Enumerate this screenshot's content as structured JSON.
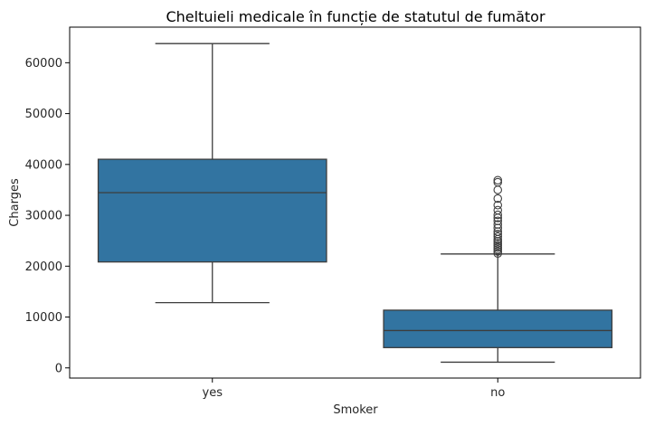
{
  "chart_data": {
    "type": "box",
    "title": "Cheltuieli medicale în funcție de statutul de fumător",
    "xlabel": "Smoker",
    "ylabel": "Charges",
    "categories": [
      "yes",
      "no"
    ],
    "ylim": [
      -2000,
      67000
    ],
    "yticks": [
      0,
      10000,
      20000,
      30000,
      40000,
      50000,
      60000
    ],
    "ytick_labels": [
      "0",
      "10000",
      "20000",
      "30000",
      "40000",
      "50000",
      "60000"
    ],
    "grid": false,
    "legend": "none",
    "box_color": "#3274a1",
    "line_color": "#3d3d3d",
    "boxes": [
      {
        "category": "yes",
        "whisker_low": 12830,
        "q1": 20830,
        "median": 34450,
        "q3": 41020,
        "whisker_high": 63770,
        "outliers": []
      },
      {
        "category": "no",
        "whisker_low": 1120,
        "q1": 3990,
        "median": 7350,
        "q3": 11350,
        "whisker_high": 22400,
        "outliers": [
          22500,
          22900,
          23300,
          23700,
          24100,
          24500,
          24900,
          25300,
          25800,
          26300,
          26800,
          27500,
          28200,
          28900,
          29500,
          30100,
          31000,
          32000,
          33300,
          35000,
          36500,
          36900
        ]
      }
    ]
  }
}
